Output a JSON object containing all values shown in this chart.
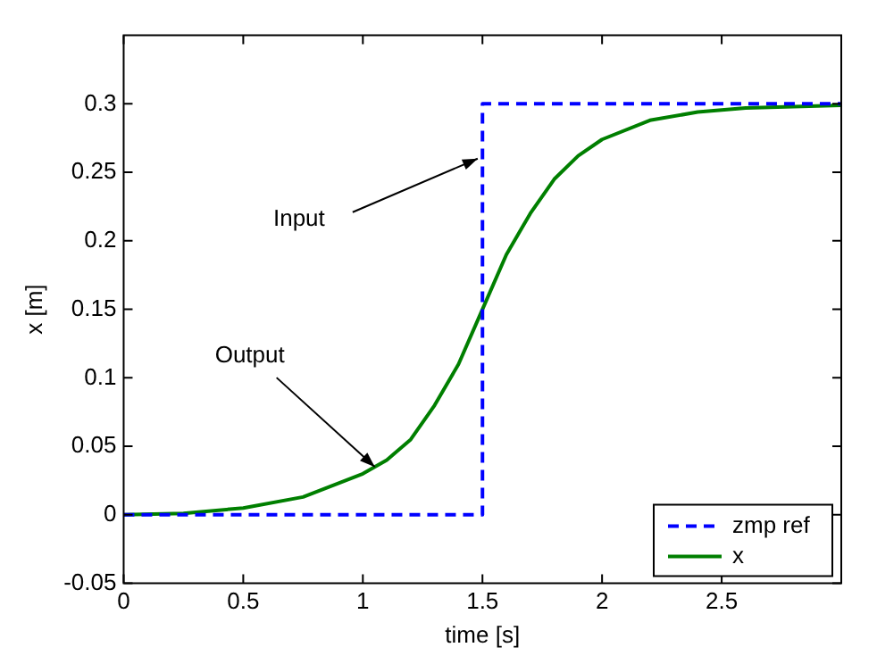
{
  "chart_data": {
    "type": "line",
    "xlabel": "time [s]",
    "ylabel": "x [m]",
    "xlim": [
      0,
      3
    ],
    "ylim": [
      -0.05,
      0.35
    ],
    "xticks": [
      0,
      0.5,
      1,
      1.5,
      2,
      2.5
    ],
    "yticks": [
      -0.05,
      0,
      0.05,
      0.1,
      0.15,
      0.2,
      0.25,
      0.3
    ],
    "grid": false,
    "legend": "bottom right",
    "marker": "none",
    "series": [
      {
        "name": "zmp ref",
        "color": "#0000ff",
        "line_style": "dashed",
        "x": [
          0,
          1.5,
          1.5,
          3
        ],
        "values": [
          0,
          0,
          0.3,
          0.3
        ]
      },
      {
        "name": "x",
        "color": "#007f00",
        "line_style": "solid",
        "x": [
          0,
          0.25,
          0.5,
          0.75,
          1,
          1.1,
          1.2,
          1.3,
          1.4,
          1.5,
          1.6,
          1.7,
          1.8,
          1.9,
          2,
          2.2,
          2.4,
          2.6,
          2.8,
          3
        ],
        "values": [
          0,
          0.001,
          0.005,
          0.013,
          0.03,
          0.04,
          0.055,
          0.08,
          0.11,
          0.15,
          0.19,
          0.22,
          0.245,
          0.262,
          0.274,
          0.288,
          0.294,
          0.297,
          0.298,
          0.299
        ]
      }
    ],
    "annotations": [
      {
        "text": "Input",
        "x": 1.48,
        "y": 0.26
      },
      {
        "text": "Output",
        "x": 1.05,
        "y": 0.035
      }
    ]
  }
}
